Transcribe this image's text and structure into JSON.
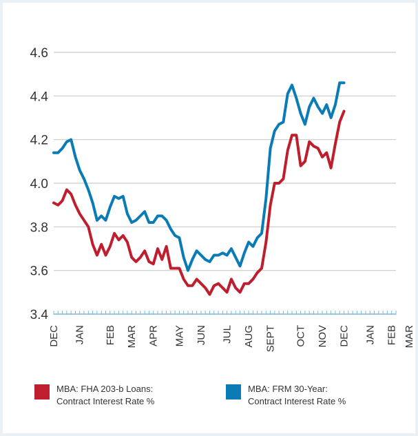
{
  "chart_data": {
    "type": "line",
    "title": "",
    "xlabel": "",
    "ylabel": "",
    "ylim": [
      3.4,
      4.6
    ],
    "yticks": [
      "3.4",
      "3.6",
      "3.8",
      "4.0",
      "4.2",
      "4.4",
      "4.6"
    ],
    "grid": true,
    "legend_position": "bottom",
    "x_count": 80,
    "months": [
      {
        "label": "DEC",
        "index": 0
      },
      {
        "label": "JAN",
        "index": 6
      },
      {
        "label": "FEB",
        "index": 13
      },
      {
        "label": "MAR",
        "index": 18
      },
      {
        "label": "APR",
        "index": 23
      },
      {
        "label": "MAY",
        "index": 29
      },
      {
        "label": "JUN",
        "index": 34
      },
      {
        "label": "JUL",
        "index": 40
      },
      {
        "label": "AUG",
        "index": 45
      },
      {
        "label": "SEPT",
        "index": 50
      },
      {
        "label": "OCT",
        "index": 57
      },
      {
        "label": "NOV",
        "index": 62
      },
      {
        "label": "DEC",
        "index": 67
      },
      {
        "label": "JAN",
        "index": 73
      },
      {
        "label": "FEB",
        "index": 78
      },
      {
        "label": "MAR",
        "index": 82
      }
    ],
    "series": [
      {
        "name": "MBA: FHA 203-b Loans:",
        "name_line2": "Contract Interest Rate %",
        "color": "#be1e2d",
        "values": [
          3.91,
          3.9,
          3.92,
          3.97,
          3.95,
          3.9,
          3.86,
          3.83,
          3.8,
          3.72,
          3.67,
          3.72,
          3.67,
          3.71,
          3.77,
          3.74,
          3.76,
          3.73,
          3.66,
          3.64,
          3.66,
          3.69,
          3.64,
          3.63,
          3.7,
          3.65,
          3.71,
          3.61,
          3.61,
          3.61,
          3.56,
          3.53,
          3.53,
          3.56,
          3.54,
          3.52,
          3.49,
          3.53,
          3.54,
          3.52,
          3.5,
          3.56,
          3.52,
          3.5,
          3.54,
          3.54,
          3.56,
          3.59,
          3.61,
          3.73,
          3.9,
          4.0,
          4.0,
          4.02,
          4.15,
          4.22,
          4.22,
          4.08,
          4.1,
          4.19,
          4.17,
          4.16,
          4.12,
          4.14,
          4.07,
          4.18,
          4.28,
          4.33
        ]
      },
      {
        "name": "MBA: FRM 30-Year:",
        "name_line2": "Contract Interest Rate %",
        "color": "#0a7bb5",
        "values": [
          4.14,
          4.14,
          4.16,
          4.19,
          4.2,
          4.12,
          4.06,
          4.02,
          3.97,
          3.91,
          3.83,
          3.85,
          3.83,
          3.89,
          3.94,
          3.93,
          3.94,
          3.86,
          3.82,
          3.83,
          3.85,
          3.87,
          3.82,
          3.82,
          3.85,
          3.85,
          3.83,
          3.79,
          3.76,
          3.75,
          3.66,
          3.6,
          3.65,
          3.69,
          3.67,
          3.65,
          3.64,
          3.67,
          3.67,
          3.68,
          3.67,
          3.7,
          3.66,
          3.62,
          3.68,
          3.73,
          3.71,
          3.75,
          3.77,
          3.93,
          4.16,
          4.24,
          4.27,
          4.28,
          4.41,
          4.45,
          4.39,
          4.32,
          4.27,
          4.35,
          4.39,
          4.35,
          4.32,
          4.36,
          4.3,
          4.36,
          4.46,
          4.46
        ]
      }
    ]
  }
}
